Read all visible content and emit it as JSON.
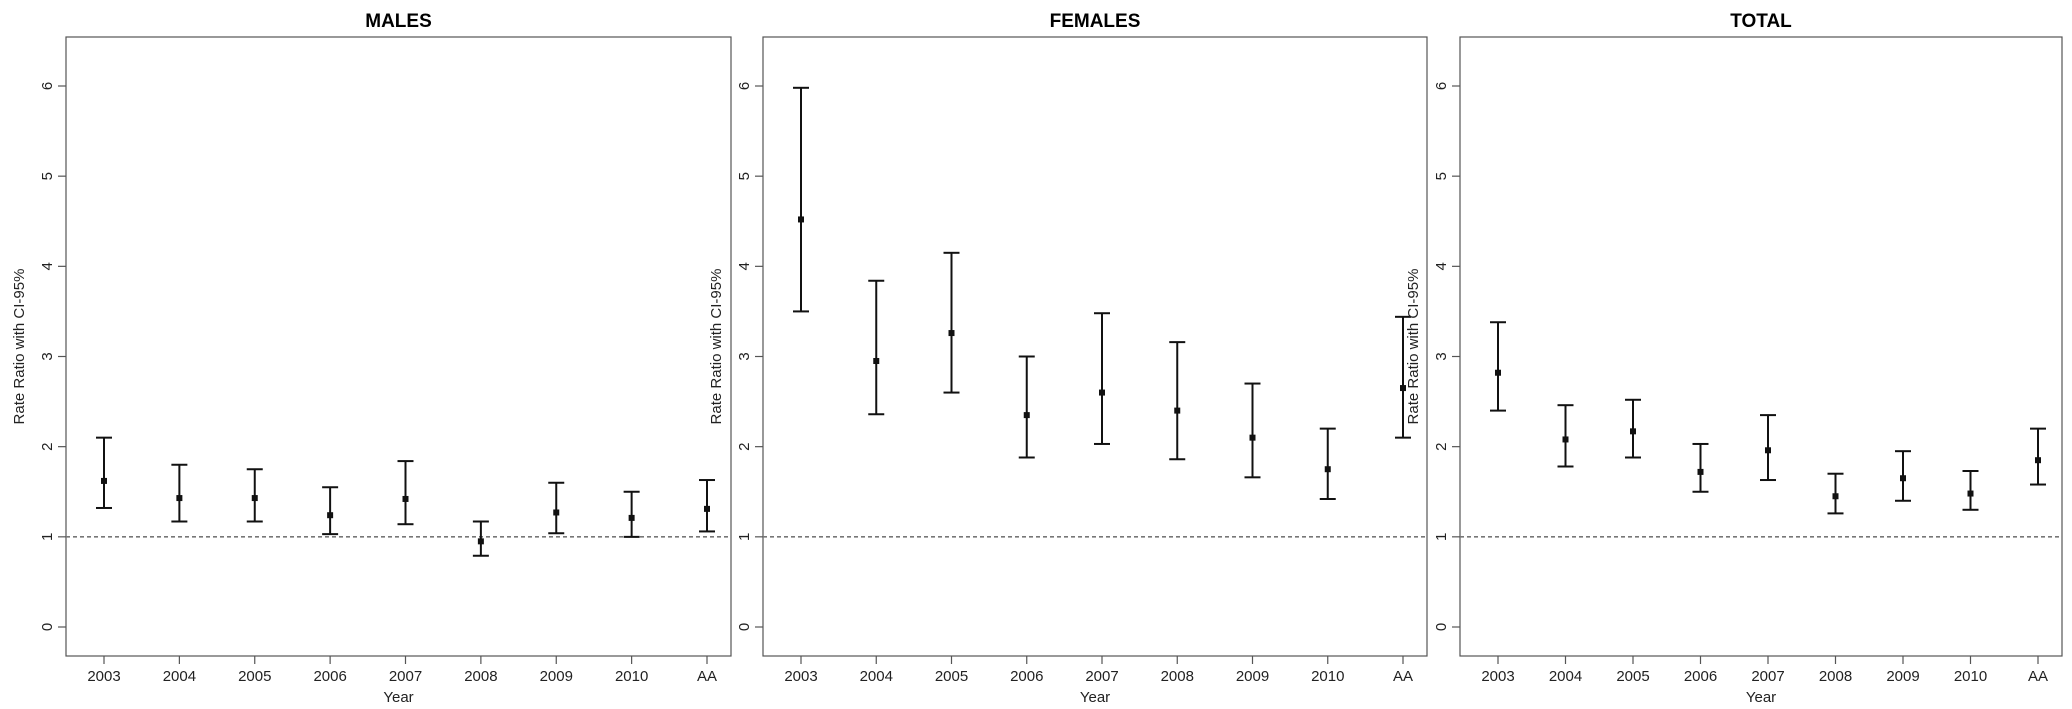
{
  "chart_data": [
    {
      "type": "errorbar",
      "title": "MALES",
      "xlabel": "Year",
      "ylabel": "Rate Ratio with CI-95%",
      "ylim": [
        0,
        6.5
      ],
      "yticks": [
        "0",
        "1",
        "2",
        "3",
        "4",
        "5",
        "6"
      ],
      "categories": [
        "2003",
        "2004",
        "2005",
        "2006",
        "2007",
        "2008",
        "2009",
        "2010",
        "AA"
      ],
      "estimate": [
        1.62,
        1.43,
        1.43,
        1.24,
        1.42,
        0.95,
        1.27,
        1.21,
        1.31
      ],
      "lower": [
        1.32,
        1.17,
        1.17,
        1.03,
        1.14,
        0.79,
        1.04,
        1.0,
        1.06
      ],
      "upper": [
        2.1,
        1.8,
        1.75,
        1.55,
        1.84,
        1.17,
        1.6,
        1.5,
        1.63
      ],
      "reference_line": 1,
      "grid": false
    },
    {
      "type": "errorbar",
      "title": "FEMALES",
      "xlabel": "Year",
      "ylabel": "Rate Ratio with CI-95%",
      "ylim": [
        0,
        6.5
      ],
      "yticks": [
        "0",
        "1",
        "2",
        "3",
        "4",
        "5",
        "6"
      ],
      "categories": [
        "2003",
        "2004",
        "2005",
        "2006",
        "2007",
        "2008",
        "2009",
        "2010",
        "AA"
      ],
      "estimate": [
        4.52,
        2.95,
        3.26,
        2.35,
        2.6,
        2.4,
        2.1,
        1.75,
        2.65
      ],
      "lower": [
        3.5,
        2.36,
        2.6,
        1.88,
        2.03,
        1.86,
        1.66,
        1.42,
        2.1
      ],
      "upper": [
        5.98,
        3.84,
        4.15,
        3.0,
        3.48,
        3.16,
        2.7,
        2.2,
        3.44
      ],
      "reference_line": 1,
      "grid": false
    },
    {
      "type": "errorbar",
      "title": "TOTAL",
      "xlabel": "Year",
      "ylabel": "Rate Ratio with CI-95%",
      "ylim": [
        0,
        6.5
      ],
      "yticks": [
        "0",
        "1",
        "2",
        "3",
        "4",
        "5",
        "6"
      ],
      "categories": [
        "2003",
        "2004",
        "2005",
        "2006",
        "2007",
        "2008",
        "2009",
        "2010",
        "AA"
      ],
      "estimate": [
        2.82,
        2.08,
        2.17,
        1.72,
        1.96,
        1.45,
        1.65,
        1.48,
        1.85
      ],
      "lower": [
        2.4,
        1.78,
        1.88,
        1.5,
        1.63,
        1.26,
        1.4,
        1.3,
        1.58
      ],
      "upper": [
        3.38,
        2.46,
        2.52,
        2.03,
        2.35,
        1.7,
        1.95,
        1.73,
        2.2
      ],
      "reference_line": 1,
      "grid": false
    }
  ]
}
